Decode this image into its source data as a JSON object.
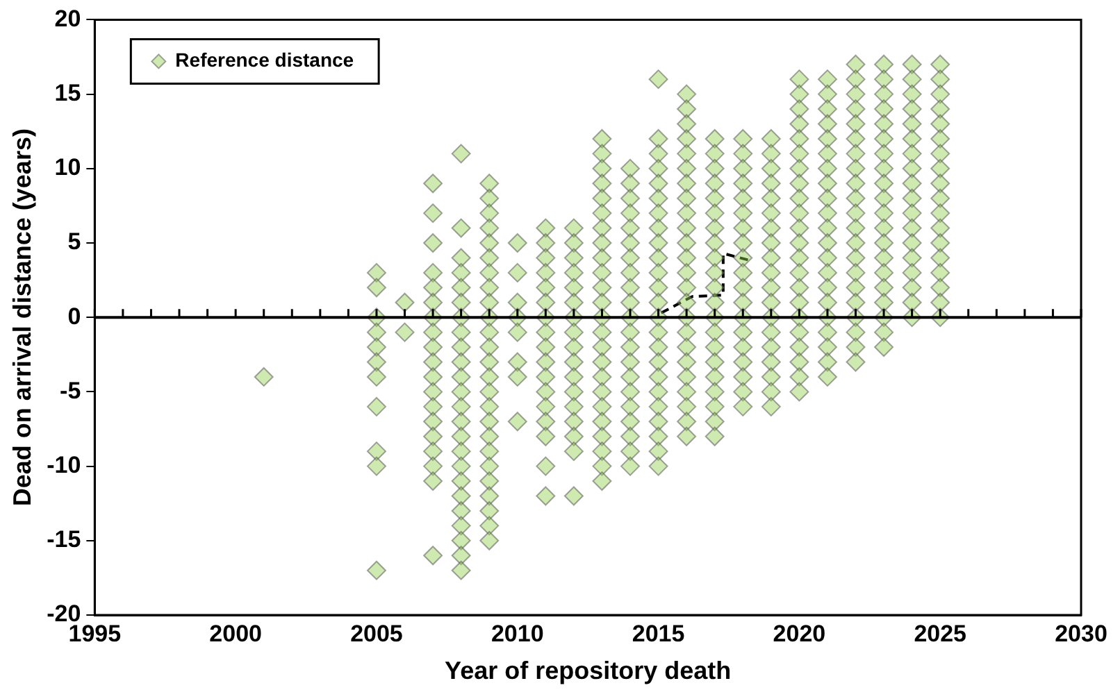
{
  "chart_data": {
    "type": "scatter",
    "xlabel": "Year of repository death",
    "ylabel": "Dead on arrival distance (years)",
    "xlim": [
      1995,
      2030
    ],
    "xticks": [
      1995,
      {
        "value": 1996,
        "label": null
      },
      {
        "value": 1997,
        "label": null
      },
      {
        "value": 1998,
        "label": null
      },
      {
        "value": 1999,
        "label": null
      },
      2000,
      {
        "value": 2001,
        "label": null
      },
      {
        "value": 2002,
        "label": null
      },
      {
        "value": 2003,
        "label": null
      },
      {
        "value": 2004,
        "label": null
      },
      2005,
      {
        "value": 2006,
        "label": null
      },
      {
        "value": 2007,
        "label": null
      },
      {
        "value": 2008,
        "label": null
      },
      {
        "value": 2009,
        "label": null
      },
      2010,
      {
        "value": 2011,
        "label": null
      },
      {
        "value": 2012,
        "label": null
      },
      {
        "value": 2013,
        "label": null
      },
      {
        "value": 2014,
        "label": null
      },
      2015,
      {
        "value": 2016,
        "label": null
      },
      {
        "value": 2017,
        "label": null
      },
      {
        "value": 2018,
        "label": null
      },
      {
        "value": 2019,
        "label": null
      },
      2020,
      {
        "value": 2021,
        "label": null
      },
      {
        "value": 2022,
        "label": null
      },
      {
        "value": 2023,
        "label": null
      },
      {
        "value": 2024,
        "label": null
      },
      2025,
      {
        "value": 2026,
        "label": null
      },
      {
        "value": 2027,
        "label": null
      },
      {
        "value": 2028,
        "label": null
      },
      {
        "value": 2029,
        "label": null
      },
      2030
    ],
    "ylim": [
      -20,
      20
    ],
    "yticks": [
      -20,
      -15,
      -10,
      -5,
      0,
      5,
      10,
      15,
      20
    ],
    "grid": false,
    "legend": "top left",
    "marker": "diamond",
    "ref_lines": [
      {
        "axis": "y",
        "value": 0,
        "color": "#000000"
      }
    ],
    "series": [
      {
        "name": "Reference distance",
        "color": "#92d050",
        "x": [
          2001,
          2005,
          2005,
          2005,
          2005,
          2005,
          2005,
          2005,
          2005,
          2005,
          2005,
          2005,
          2006,
          2006,
          2007,
          2007,
          2007,
          2007,
          2007,
          2007,
          2007,
          2007,
          2007,
          2007,
          2007,
          2007,
          2007,
          2007,
          2007,
          2007,
          2007,
          2007,
          2007,
          2008,
          2008,
          2008,
          2008,
          2008,
          2008,
          2008,
          2008,
          2008,
          2008,
          2008,
          2008,
          2008,
          2008,
          2008,
          2008,
          2008,
          2008,
          2008,
          2008,
          2008,
          2008,
          2008,
          2008,
          2009,
          2009,
          2009,
          2009,
          2009,
          2009,
          2009,
          2009,
          2009,
          2009,
          2009,
          2009,
          2009,
          2009,
          2009,
          2009,
          2009,
          2009,
          2009,
          2009,
          2009,
          2009,
          2009,
          2009,
          2009,
          2010,
          2010,
          2010,
          2010,
          2010,
          2010,
          2010,
          2010,
          2011,
          2011,
          2011,
          2011,
          2011,
          2011,
          2011,
          2011,
          2011,
          2011,
          2011,
          2011,
          2011,
          2011,
          2011,
          2011,
          2011,
          2012,
          2012,
          2012,
          2012,
          2012,
          2012,
          2012,
          2012,
          2012,
          2012,
          2012,
          2012,
          2012,
          2012,
          2012,
          2012,
          2012,
          2013,
          2013,
          2013,
          2013,
          2013,
          2013,
          2013,
          2013,
          2013,
          2013,
          2013,
          2013,
          2013,
          2013,
          2013,
          2013,
          2013,
          2013,
          2013,
          2013,
          2013,
          2013,
          2013,
          2013,
          2014,
          2014,
          2014,
          2014,
          2014,
          2014,
          2014,
          2014,
          2014,
          2014,
          2014,
          2014,
          2014,
          2014,
          2014,
          2014,
          2014,
          2014,
          2014,
          2014,
          2014,
          2015,
          2015,
          2015,
          2015,
          2015,
          2015,
          2015,
          2015,
          2015,
          2015,
          2015,
          2015,
          2015,
          2015,
          2015,
          2015,
          2015,
          2015,
          2015,
          2015,
          2015,
          2015,
          2015,
          2015,
          2016,
          2016,
          2016,
          2016,
          2016,
          2016,
          2016,
          2016,
          2016,
          2016,
          2016,
          2016,
          2016,
          2016,
          2016,
          2016,
          2016,
          2016,
          2016,
          2016,
          2016,
          2016,
          2016,
          2016,
          2017,
          2017,
          2017,
          2017,
          2017,
          2017,
          2017,
          2017,
          2017,
          2017,
          2017,
          2017,
          2017,
          2017,
          2017,
          2017,
          2017,
          2017,
          2017,
          2017,
          2017,
          2018,
          2018,
          2018,
          2018,
          2018,
          2018,
          2018,
          2018,
          2018,
          2018,
          2018,
          2018,
          2018,
          2018,
          2018,
          2018,
          2018,
          2018,
          2018,
          2019,
          2019,
          2019,
          2019,
          2019,
          2019,
          2019,
          2019,
          2019,
          2019,
          2019,
          2019,
          2019,
          2019,
          2019,
          2019,
          2019,
          2019,
          2019,
          2020,
          2020,
          2020,
          2020,
          2020,
          2020,
          2020,
          2020,
          2020,
          2020,
          2020,
          2020,
          2020,
          2020,
          2020,
          2020,
          2020,
          2020,
          2020,
          2020,
          2020,
          2020,
          2021,
          2021,
          2021,
          2021,
          2021,
          2021,
          2021,
          2021,
          2021,
          2021,
          2021,
          2021,
          2021,
          2021,
          2021,
          2021,
          2021,
          2021,
          2021,
          2021,
          2021,
          2022,
          2022,
          2022,
          2022,
          2022,
          2022,
          2022,
          2022,
          2022,
          2022,
          2022,
          2022,
          2022,
          2022,
          2022,
          2022,
          2022,
          2022,
          2022,
          2022,
          2022,
          2023,
          2023,
          2023,
          2023,
          2023,
          2023,
          2023,
          2023,
          2023,
          2023,
          2023,
          2023,
          2023,
          2023,
          2023,
          2023,
          2023,
          2023,
          2023,
          2023,
          2024,
          2024,
          2024,
          2024,
          2024,
          2024,
          2024,
          2024,
          2024,
          2024,
          2024,
          2024,
          2024,
          2024,
          2024,
          2024,
          2024,
          2024,
          2025,
          2025,
          2025,
          2025,
          2025,
          2025,
          2025,
          2025,
          2025,
          2025,
          2025,
          2025,
          2025,
          2025,
          2025,
          2025,
          2025,
          2025
        ],
        "values": [
          -4,
          3,
          2,
          0,
          -1,
          -2,
          -3,
          -4,
          -6,
          -9,
          -10,
          -17,
          1,
          -1,
          9,
          7,
          5,
          3,
          2,
          1,
          0,
          -1,
          -2,
          -3,
          -4,
          -5,
          -6,
          -7,
          -8,
          -9,
          -10,
          -11,
          -16,
          11,
          6,
          4,
          3,
          2,
          1,
          0,
          -1,
          -2,
          -3,
          -4,
          -5,
          -6,
          -7,
          -8,
          -9,
          -10,
          -11,
          -12,
          -13,
          -14,
          -15,
          -16,
          -17,
          9,
          8,
          7,
          6,
          5,
          4,
          3,
          2,
          1,
          0,
          -1,
          -2,
          -3,
          -4,
          -5,
          -6,
          -7,
          -8,
          -9,
          -10,
          -11,
          -12,
          -13,
          -14,
          -15,
          5,
          3,
          1,
          0,
          -1,
          -3,
          -4,
          -7,
          6,
          5,
          4,
          3,
          2,
          1,
          0,
          -1,
          -2,
          -3,
          -4,
          -5,
          -6,
          -7,
          -8,
          -10,
          -12,
          6,
          5,
          4,
          3,
          2,
          1,
          0,
          -1,
          -2,
          -3,
          -4,
          -5,
          -6,
          -7,
          -8,
          -9,
          -12,
          12,
          11,
          10,
          9,
          8,
          7,
          6,
          5,
          4,
          3,
          2,
          1,
          0,
          -1,
          -2,
          -3,
          -4,
          -5,
          -6,
          -7,
          -8,
          -9,
          -10,
          -11,
          10,
          9,
          8,
          7,
          6,
          5,
          4,
          3,
          2,
          1,
          0,
          -1,
          -2,
          -3,
          -4,
          -5,
          -6,
          -7,
          -8,
          -9,
          -10,
          16,
          12,
          11,
          10,
          9,
          8,
          7,
          6,
          5,
          4,
          3,
          2,
          1,
          0,
          -1,
          -2,
          -3,
          -4,
          -5,
          -6,
          -7,
          -8,
          -9,
          -10,
          15,
          14,
          13,
          12,
          11,
          10,
          9,
          8,
          7,
          6,
          5,
          4,
          3,
          2,
          1,
          0,
          -1,
          -2,
          -3,
          -4,
          -5,
          -6,
          -7,
          -8,
          12,
          11,
          10,
          9,
          8,
          7,
          6,
          5,
          4,
          3,
          2,
          1,
          0,
          -1,
          -2,
          -3,
          -4,
          -5,
          -6,
          -7,
          -8,
          12,
          11,
          10,
          9,
          8,
          7,
          6,
          5,
          4,
          3,
          2,
          1,
          0,
          -1,
          -2,
          -3,
          -4,
          -5,
          -6,
          12,
          11,
          10,
          9,
          8,
          7,
          6,
          5,
          4,
          3,
          2,
          1,
          0,
          -1,
          -2,
          -3,
          -4,
          -5,
          -6,
          16,
          15,
          14,
          13,
          12,
          11,
          10,
          9,
          8,
          7,
          6,
          5,
          4,
          3,
          2,
          1,
          0,
          -1,
          -2,
          -3,
          -4,
          -5,
          16,
          15,
          14,
          13,
          12,
          11,
          10,
          9,
          8,
          7,
          6,
          5,
          4,
          3,
          2,
          1,
          0,
          -1,
          -2,
          -3,
          -4,
          17,
          16,
          15,
          14,
          13,
          12,
          11,
          10,
          9,
          8,
          7,
          6,
          5,
          4,
          3,
          2,
          1,
          0,
          -1,
          -2,
          -3,
          17,
          16,
          15,
          14,
          13,
          12,
          11,
          10,
          9,
          8,
          7,
          6,
          5,
          4,
          3,
          2,
          1,
          0,
          -1,
          -2,
          17,
          16,
          15,
          14,
          13,
          12,
          11,
          10,
          9,
          8,
          7,
          6,
          5,
          4,
          3,
          2,
          1,
          0,
          17,
          16,
          15,
          14,
          13,
          12,
          11,
          10,
          9,
          8,
          7,
          6,
          5,
          4,
          3,
          2,
          1,
          0
        ]
      },
      {
        "type": "line",
        "color": "#000000",
        "line_style": "dashed",
        "marker": "none",
        "x": [
          2015.1,
          2016.2,
          2017.3,
          2017.3,
          2018.3
        ],
        "values": [
          0.3,
          1.4,
          1.5,
          4.3,
          3.8
        ]
      }
    ]
  }
}
